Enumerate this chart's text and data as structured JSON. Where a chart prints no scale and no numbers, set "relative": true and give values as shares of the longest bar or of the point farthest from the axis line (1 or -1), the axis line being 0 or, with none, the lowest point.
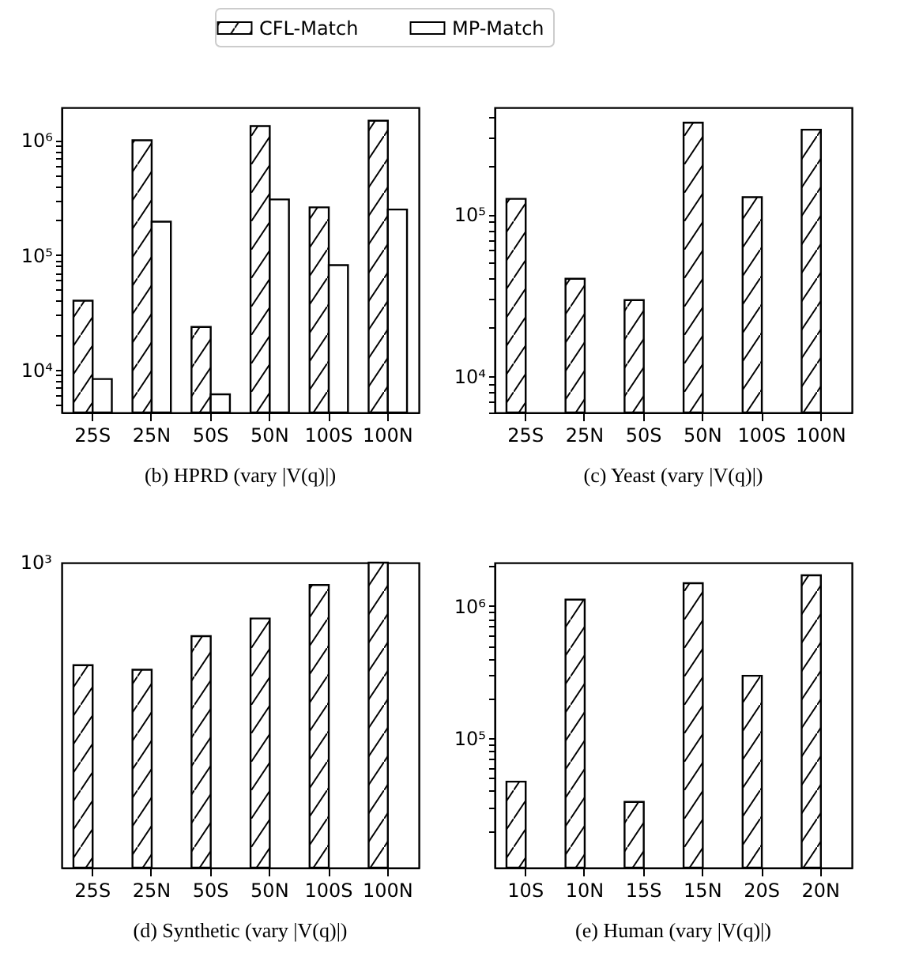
{
  "chart_data": [
    {
      "type": "bar",
      "title": "(b) HPRD (vary |V(q)|)",
      "legend": "top",
      "log": true,
      "categories": [
        "25S",
        "25N",
        "50S",
        "50N",
        "100S",
        "100N"
      ],
      "series": [
        {
          "name": "CFL-Match",
          "color": "#000000",
          "values": [
            40000,
            1000000,
            23600,
            1330000,
            260000,
            1480000
          ]
        },
        {
          "name": "MP-Match",
          "color": "#ffffff",
          "values": [
            8300,
            195000,
            6100,
            305000,
            81600,
            249000
          ]
        }
      ],
      "ylim": [
        4240,
        1930000
      ],
      "yticks": [
        {
          "value": 5000,
          "label": null
        },
        {
          "value": 6000,
          "label": null
        },
        {
          "value": 7000,
          "label": null
        },
        {
          "value": 8000,
          "label": null
        },
        {
          "value": 9000,
          "label": null
        },
        {
          "value": 10000,
          "label": "10⁴"
        },
        {
          "value": 20000,
          "label": null
        },
        {
          "value": 30000,
          "label": null
        },
        {
          "value": 40000,
          "label": null
        },
        {
          "value": 50000,
          "label": null
        },
        {
          "value": 60000,
          "label": null
        },
        {
          "value": 70000,
          "label": null
        },
        {
          "value": 80000,
          "label": null
        },
        {
          "value": 90000,
          "label": null
        },
        {
          "value": 100000,
          "label": "10⁵"
        },
        {
          "value": 200000,
          "label": null
        },
        {
          "value": 300000,
          "label": null
        },
        {
          "value": 400000,
          "label": null
        },
        {
          "value": 500000,
          "label": null
        },
        {
          "value": 600000,
          "label": null
        },
        {
          "value": 700000,
          "label": null
        },
        {
          "value": 800000,
          "label": null
        },
        {
          "value": 900000,
          "label": null
        },
        {
          "value": 1000000,
          "label": "10⁶"
        }
      ]
    },
    {
      "type": "bar",
      "title": "(c) Yeast (vary |V(q)|)",
      "log": true,
      "categories": [
        "25S",
        "25N",
        "50S",
        "50N",
        "100S",
        "100N"
      ],
      "series": [
        {
          "color": "#000000",
          "values": [
            125000,
            40000,
            29500,
            370000,
            128000,
            335000
          ]
        }
      ],
      "ylim": [
        5940,
        460000
      ],
      "yticks": [
        {
          "value": 6000,
          "label": null
        },
        {
          "value": 7000,
          "label": null
        },
        {
          "value": 8000,
          "label": null
        },
        {
          "value": 9000,
          "label": null
        },
        {
          "value": 10000,
          "label": "10⁴"
        },
        {
          "value": 20000,
          "label": null
        },
        {
          "value": 30000,
          "label": null
        },
        {
          "value": 40000,
          "label": null
        },
        {
          "value": 50000,
          "label": null
        },
        {
          "value": 60000,
          "label": null
        },
        {
          "value": 70000,
          "label": null
        },
        {
          "value": 80000,
          "label": null
        },
        {
          "value": 90000,
          "label": null
        },
        {
          "value": 100000,
          "label": "10⁵"
        },
        {
          "value": 200000,
          "label": null
        },
        {
          "value": 300000,
          "label": null
        },
        {
          "value": 400000,
          "label": null
        }
      ]
    },
    {
      "type": "bar",
      "title": "(d) Synthetic (vary |V(q)|)",
      "relative": true,
      "annotations": [
        "10³"
      ],
      "categories": [
        "25S",
        "25N",
        "50S",
        "50N",
        "100S",
        "100N"
      ],
      "series": [
        {
          "color": "#000000",
          "values": [
            0.664,
            0.649,
            0.759,
            0.817,
            0.927,
            1
          ]
        }
      ]
    },
    {
      "type": "bar",
      "title": "(e) Human (vary |V(q)|)",
      "log": true,
      "categories": [
        "10S",
        "10N",
        "15S",
        "15N",
        "20S",
        "20N"
      ],
      "series": [
        {
          "color": "#000000",
          "values": [
            47000,
            1120000,
            33000,
            1490000,
            297000,
            1710000
          ]
        }
      ],
      "ylim": [
        10500,
        2130000
      ],
      "yticks": [
        {
          "value": 20000,
          "label": null
        },
        {
          "value": 30000,
          "label": null
        },
        {
          "value": 40000,
          "label": null
        },
        {
          "value": 50000,
          "label": null
        },
        {
          "value": 60000,
          "label": null
        },
        {
          "value": 70000,
          "label": null
        },
        {
          "value": 80000,
          "label": null
        },
        {
          "value": 90000,
          "label": null
        },
        {
          "value": 100000,
          "label": "10⁵"
        },
        {
          "value": 200000,
          "label": null
        },
        {
          "value": 300000,
          "label": null
        },
        {
          "value": 400000,
          "label": null
        },
        {
          "value": 500000,
          "label": null
        },
        {
          "value": 600000,
          "label": null
        },
        {
          "value": 700000,
          "label": null
        },
        {
          "value": 800000,
          "label": null
        },
        {
          "value": 900000,
          "label": null
        },
        {
          "value": 1000000,
          "label": "10⁶"
        },
        {
          "value": 2000000,
          "label": null
        }
      ]
    }
  ]
}
